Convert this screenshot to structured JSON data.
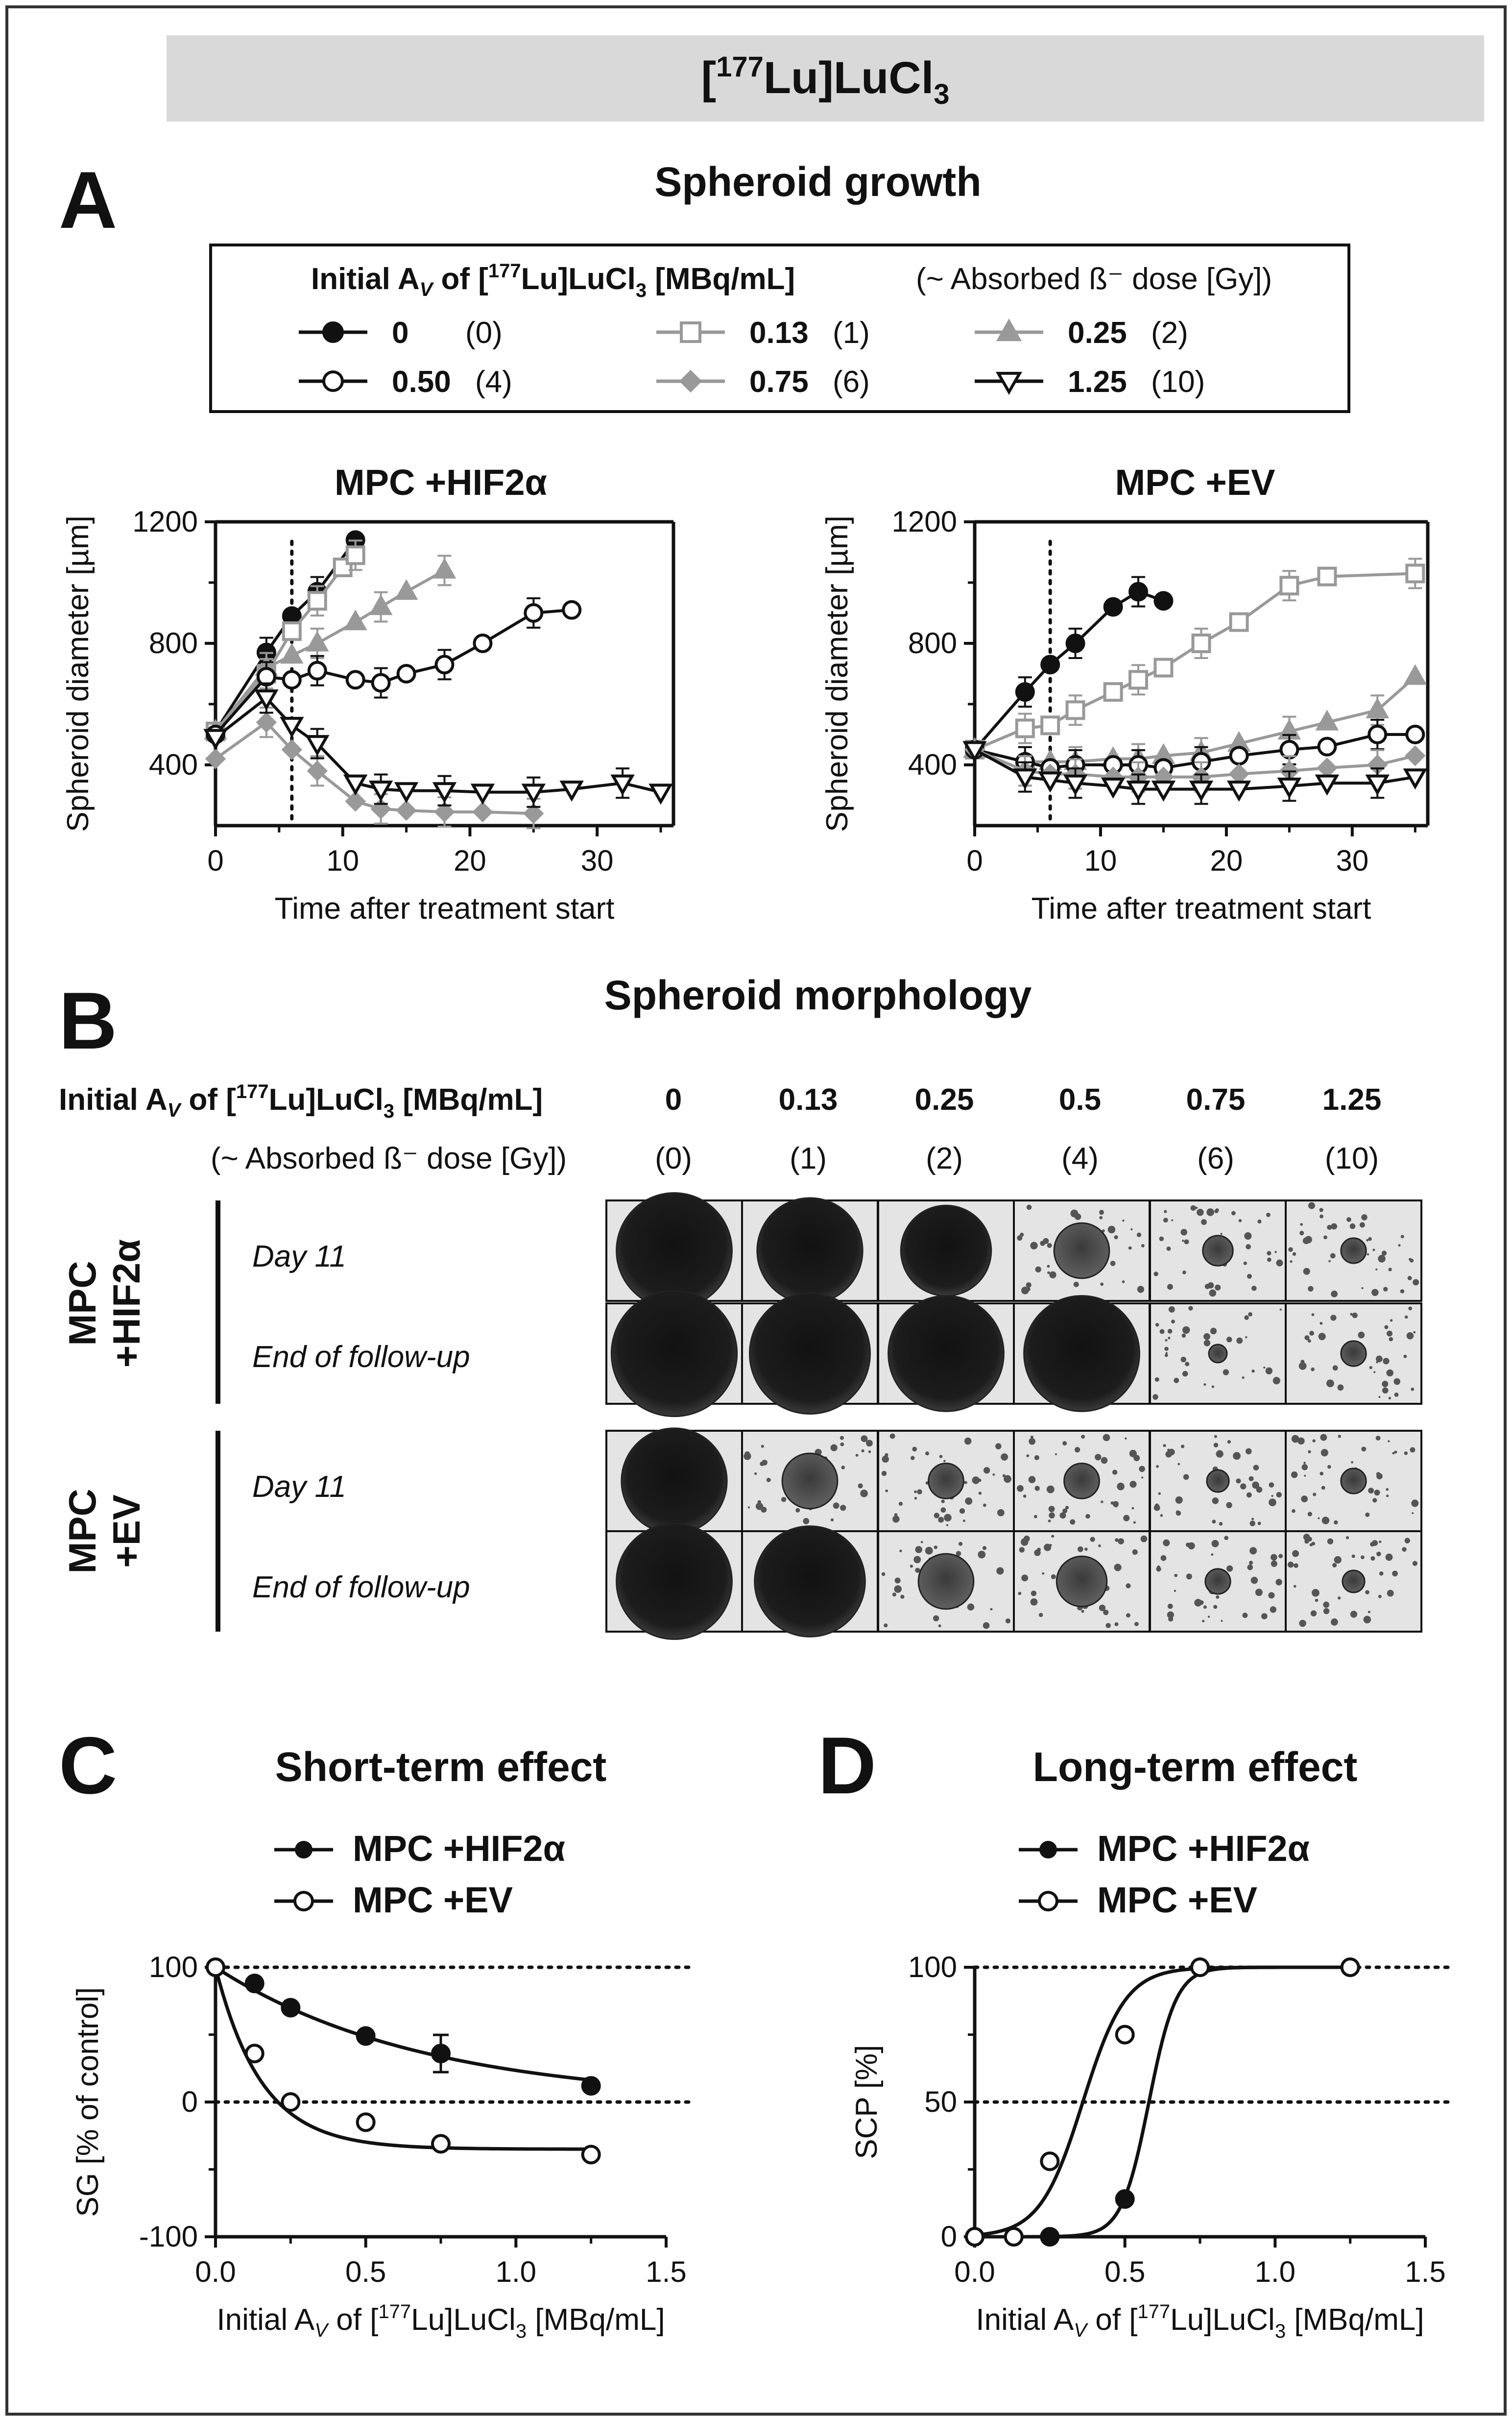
{
  "header": {
    "title_pre": "[",
    "title_sup": "177",
    "title_mid": "Lu]LuCl",
    "title_sub": "3"
  },
  "panelA": {
    "letter": "A",
    "title": "Spheroid growth",
    "legend": {
      "title_pre": "Initial A",
      "title_sub": "V",
      "title_mid": " of [",
      "title_sup": "177",
      "title_mid2": "Lu]LuCl",
      "title_sub2": "3",
      "title_post": " [MBq/mL]",
      "note": "(~ Absorbed ß⁻ dose [Gy])",
      "entries": [
        {
          "value": "0",
          "dose": "(0)",
          "marker": "filled-circle",
          "color": "#111111"
        },
        {
          "value": "0.13",
          "dose": "(1)",
          "marker": "open-square",
          "color": "#9a9a9a"
        },
        {
          "value": "0.25",
          "dose": "(2)",
          "marker": "filled-triangle",
          "color": "#9a9a9a"
        },
        {
          "value": "0.50",
          "dose": "(4)",
          "marker": "open-circle",
          "color": "#111111"
        },
        {
          "value": "0.75",
          "dose": "(6)",
          "marker": "filled-diamond",
          "color": "#9a9a9a"
        },
        {
          "value": "1.25",
          "dose": "(10)",
          "marker": "open-inverted-triangle",
          "color": "#111111"
        }
      ]
    }
  },
  "panelB": {
    "letter": "B",
    "title": "Spheroid morphology",
    "header_pre": "Initial A",
    "header_sub": "V",
    "header_mid": " of [",
    "header_sup": "177",
    "header_mid2": "Lu]LuCl",
    "header_sub2": "3",
    "header_post": " [MBq/mL]",
    "dose_note": "(~ Absorbed ß⁻ dose [Gy])",
    "activities": [
      "0",
      "0.13",
      "0.25",
      "0.5",
      "0.75",
      "1.25"
    ],
    "doses": [
      "(0)",
      "(1)",
      "(2)",
      "(4)",
      "(6)",
      "(10)"
    ],
    "groups": [
      {
        "label_line1": "MPC",
        "label_line2": "+HIF2α",
        "rows": [
          "Day 11",
          "End of follow-up"
        ]
      },
      {
        "label_line1": "MPC",
        "label_line2": "+EV",
        "rows": [
          "Day 11",
          "End of follow-up"
        ]
      }
    ]
  },
  "panelC": {
    "letter": "C",
    "title": "Short-term effect",
    "legend": [
      "MPC +HIF2α",
      "MPC +EV"
    ]
  },
  "panelD": {
    "letter": "D",
    "title": "Long-term effect",
    "legend": [
      "MPC +HIF2α",
      "MPC +EV"
    ]
  },
  "chart_data": [
    {
      "id": "A1",
      "type": "line",
      "title": "MPC +HIF2α",
      "xlabel": "Time after treatment start",
      "ylabel": "Spheroid diameter [µm]",
      "xlim": [
        0,
        36
      ],
      "ylim": [
        200,
        1200
      ],
      "xticks": [
        "0",
        "10",
        "20",
        "30"
      ],
      "yticks": [
        "400",
        "800",
        "1200"
      ],
      "vline_x": 6,
      "series": [
        {
          "name": "0",
          "x": [
            0,
            4,
            6,
            8,
            11
          ],
          "y": [
            510,
            770,
            890,
            970,
            1140
          ]
        },
        {
          "name": "0.13",
          "x": [
            0,
            4,
            6,
            8,
            10,
            11
          ],
          "y": [
            510,
            700,
            840,
            940,
            1050,
            1090
          ]
        },
        {
          "name": "0.25",
          "x": [
            0,
            4,
            6,
            8,
            11,
            13,
            15,
            18
          ],
          "y": [
            510,
            720,
            760,
            800,
            870,
            920,
            970,
            1040
          ]
        },
        {
          "name": "0.50",
          "x": [
            0,
            4,
            6,
            8,
            11,
            13,
            15,
            18,
            21,
            25,
            28
          ],
          "y": [
            500,
            690,
            680,
            710,
            680,
            670,
            700,
            730,
            800,
            900,
            910
          ]
        },
        {
          "name": "0.75",
          "x": [
            0,
            4,
            6,
            8,
            11,
            13,
            15,
            18,
            21,
            25
          ],
          "y": [
            420,
            540,
            450,
            380,
            280,
            255,
            250,
            245,
            245,
            240
          ]
        },
        {
          "name": "1.25",
          "x": [
            0,
            4,
            6,
            8,
            11,
            13,
            15,
            18,
            21,
            25,
            28,
            32,
            35
          ],
          "y": [
            490,
            620,
            530,
            470,
            340,
            320,
            315,
            315,
            310,
            310,
            320,
            340,
            310
          ]
        }
      ]
    },
    {
      "id": "A2",
      "type": "line",
      "title": "MPC +EV",
      "xlabel": "Time after treatment start",
      "ylabel": "Spheroid diameter [µm]",
      "xlim": [
        0,
        36
      ],
      "ylim": [
        200,
        1200
      ],
      "xticks": [
        "0",
        "10",
        "20",
        "30"
      ],
      "yticks": [
        "400",
        "800",
        "1200"
      ],
      "vline_x": 6,
      "series": [
        {
          "name": "0",
          "x": [
            0,
            4,
            6,
            8,
            11,
            13,
            15
          ],
          "y": [
            450,
            640,
            730,
            800,
            920,
            970,
            940
          ]
        },
        {
          "name": "0.13",
          "x": [
            0,
            4,
            6,
            8,
            11,
            13,
            15,
            18,
            21,
            25,
            28,
            35
          ],
          "y": [
            450,
            520,
            530,
            580,
            640,
            680,
            720,
            800,
            870,
            990,
            1020,
            1030
          ]
        },
        {
          "name": "0.25",
          "x": [
            0,
            4,
            6,
            8,
            11,
            13,
            15,
            18,
            21,
            25,
            28,
            32,
            35
          ],
          "y": [
            450,
            410,
            410,
            410,
            420,
            420,
            430,
            440,
            470,
            510,
            540,
            580,
            690
          ]
        },
        {
          "name": "0.50",
          "x": [
            0,
            4,
            6,
            8,
            11,
            13,
            15,
            18,
            21,
            25,
            28,
            32,
            35
          ],
          "y": [
            450,
            410,
            390,
            400,
            400,
            400,
            390,
            410,
            430,
            450,
            460,
            500,
            500
          ]
        },
        {
          "name": "0.75",
          "x": [
            0,
            4,
            6,
            8,
            11,
            13,
            15,
            18,
            21,
            25,
            28,
            32,
            35
          ],
          "y": [
            450,
            380,
            370,
            370,
            360,
            360,
            360,
            360,
            370,
            380,
            390,
            400,
            430
          ]
        },
        {
          "name": "1.25",
          "x": [
            0,
            4,
            6,
            8,
            11,
            13,
            15,
            18,
            21,
            25,
            28,
            32,
            35
          ],
          "y": [
            450,
            360,
            350,
            340,
            330,
            320,
            320,
            320,
            320,
            330,
            340,
            340,
            360
          ]
        }
      ]
    },
    {
      "id": "C",
      "type": "scatter",
      "title": "Short-term effect",
      "xlabel": "Initial A_V of [177Lu]LuCl3 [MBq/mL]",
      "ylabel": "SG [% of control]",
      "xlim": [
        0,
        1.5
      ],
      "ylim": [
        -100,
        100
      ],
      "xticks": [
        "0.0",
        "0.5",
        "1.0",
        "1.5"
      ],
      "yticks": [
        "-100",
        "0",
        "100"
      ],
      "hlines": [
        100,
        0
      ],
      "series": [
        {
          "name": "MPC +HIF2α",
          "x": [
            0,
            0.13,
            0.25,
            0.5,
            0.75,
            1.25
          ],
          "y": [
            100,
            88,
            70,
            49,
            36,
            12
          ]
        },
        {
          "name": "MPC +EV",
          "x": [
            0,
            0.13,
            0.25,
            0.5,
            0.75,
            1.25
          ],
          "y": [
            100,
            36,
            0,
            -15,
            -31,
            -39
          ]
        }
      ]
    },
    {
      "id": "D",
      "type": "scatter",
      "title": "Long-term effect",
      "xlabel": "Initial A_V of [177Lu]LuCl3 [MBq/mL]",
      "ylabel": "SCP [%]",
      "xlim": [
        0,
        1.5
      ],
      "ylim": [
        0,
        100
      ],
      "xticks": [
        "0.0",
        "0.5",
        "1.0",
        "1.5"
      ],
      "yticks": [
        "0",
        "50",
        "100"
      ],
      "hlines": [
        100,
        50
      ],
      "series": [
        {
          "name": "MPC +HIF2α",
          "x": [
            0,
            0.13,
            0.25,
            0.5,
            0.75,
            1.25
          ],
          "y": [
            0,
            0,
            0,
            14,
            100,
            100
          ]
        },
        {
          "name": "MPC +EV",
          "x": [
            0,
            0.13,
            0.25,
            0.5,
            0.75,
            1.25
          ],
          "y": [
            0,
            0,
            28,
            75,
            100,
            100
          ]
        }
      ]
    }
  ]
}
